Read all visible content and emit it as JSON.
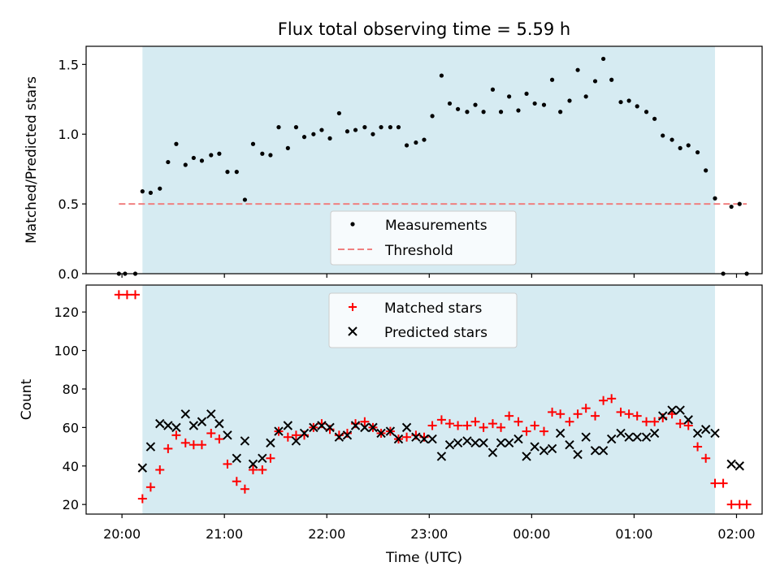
{
  "title": "Flux total observing time = 5.59 h",
  "xlabel": "Time (UTC)",
  "x_ticks": [
    "20:00",
    "21:00",
    "22:00",
    "23:00",
    "00:00",
    "01:00",
    "02:00"
  ],
  "colors": {
    "shade": "#add8e6",
    "measurement": "#000000",
    "threshold": "#f08080",
    "matched": "#ff0000",
    "predicted": "#000000"
  },
  "chart_data": [
    {
      "type": "scatter",
      "ylabel": "Matched/Predicted stars",
      "x_unit": "hours after 20:00 UTC",
      "xlim": [
        -0.35,
        6.25
      ],
      "ylim": [
        0,
        1.63
      ],
      "y_ticks": [
        "0.0",
        "0.5",
        "1.0",
        "1.5"
      ],
      "y_tick_values": [
        0,
        0.5,
        1.0,
        1.5
      ],
      "shaded_interval": [
        0.2,
        5.79
      ],
      "legend_location": "lower center",
      "legend": {
        "measurements": "Measurements",
        "threshold": "Threshold"
      },
      "threshold": {
        "name": "Threshold",
        "value": 0.5,
        "x_range": [
          -0.03,
          6.1
        ]
      },
      "series": [
        {
          "name": "Measurements",
          "x": [
            -0.03,
            0.03,
            0.13,
            0.2,
            0.28,
            0.37,
            0.45,
            0.53,
            0.62,
            0.7,
            0.78,
            0.87,
            0.95,
            1.03,
            1.12,
            1.2,
            1.28,
            1.37,
            1.45,
            1.53,
            1.62,
            1.7,
            1.78,
            1.87,
            1.95,
            2.03,
            2.12,
            2.2,
            2.28,
            2.37,
            2.45,
            2.53,
            2.62,
            2.7,
            2.78,
            2.87,
            2.95,
            3.03,
            3.12,
            3.2,
            3.28,
            3.37,
            3.45,
            3.53,
            3.62,
            3.7,
            3.78,
            3.87,
            3.95,
            4.03,
            4.12,
            4.2,
            4.28,
            4.37,
            4.45,
            4.53,
            4.62,
            4.7,
            4.78,
            4.87,
            4.95,
            5.03,
            5.12,
            5.2,
            5.28,
            5.37,
            5.45,
            5.53,
            5.62,
            5.7,
            5.79,
            5.87,
            5.95,
            6.03,
            6.1
          ],
          "y": [
            0.0,
            0.0,
            0.0,
            0.59,
            0.58,
            0.61,
            0.8,
            0.93,
            0.78,
            0.83,
            0.81,
            0.85,
            0.86,
            0.73,
            0.73,
            0.53,
            0.93,
            0.86,
            0.85,
            1.05,
            0.9,
            1.05,
            0.98,
            1.0,
            1.03,
            0.97,
            1.15,
            1.02,
            1.03,
            1.05,
            1.0,
            1.05,
            1.05,
            1.05,
            0.92,
            0.94,
            0.96,
            1.13,
            1.42,
            1.22,
            1.18,
            1.16,
            1.21,
            1.16,
            1.32,
            1.16,
            1.27,
            1.17,
            1.29,
            1.22,
            1.21,
            1.39,
            1.16,
            1.24,
            1.46,
            1.27,
            1.38,
            1.54,
            1.39,
            1.23,
            1.24,
            1.2,
            1.16,
            1.11,
            0.99,
            0.96,
            0.9,
            0.92,
            0.87,
            0.74,
            0.54,
            0.0,
            0.48,
            0.5,
            0.0
          ]
        }
      ]
    },
    {
      "type": "scatter",
      "ylabel": "Count",
      "x_unit": "hours after 20:00 UTC",
      "xlim": [
        -0.35,
        6.25
      ],
      "ylim": [
        15,
        134
      ],
      "y_ticks": [
        "20",
        "40",
        "60",
        "80",
        "100",
        "120"
      ],
      "y_tick_values": [
        20,
        40,
        60,
        80,
        100,
        120
      ],
      "shaded_interval": [
        0.2,
        5.79
      ],
      "legend_location": "upper center",
      "legend": {
        "matched": "Matched stars",
        "predicted": "Predicted stars"
      },
      "series": [
        {
          "name": "Matched stars",
          "marker": "+",
          "x": [
            -0.03,
            0.05,
            0.13,
            0.2,
            0.28,
            0.37,
            0.45,
            0.53,
            0.62,
            0.7,
            0.78,
            0.87,
            0.95,
            1.03,
            1.12,
            1.2,
            1.28,
            1.37,
            1.45,
            1.53,
            1.62,
            1.7,
            1.78,
            1.87,
            1.95,
            2.03,
            2.12,
            2.2,
            2.28,
            2.37,
            2.45,
            2.53,
            2.62,
            2.7,
            2.78,
            2.87,
            2.95,
            3.03,
            3.12,
            3.2,
            3.28,
            3.37,
            3.45,
            3.53,
            3.62,
            3.7,
            3.78,
            3.87,
            3.95,
            4.03,
            4.12,
            4.2,
            4.28,
            4.37,
            4.45,
            4.53,
            4.62,
            4.7,
            4.78,
            4.87,
            4.95,
            5.03,
            5.12,
            5.2,
            5.28,
            5.37,
            5.45,
            5.53,
            5.62,
            5.7,
            5.79,
            5.87,
            5.95,
            6.03,
            6.1
          ],
          "y": [
            129,
            129,
            129,
            23,
            29,
            38,
            49,
            56,
            52,
            51,
            51,
            57,
            54,
            41,
            32,
            28,
            38,
            38,
            44,
            58,
            55,
            56,
            56,
            60,
            62,
            59,
            56,
            57,
            62,
            63,
            60,
            57,
            58,
            54,
            55,
            56,
            55,
            61,
            64,
            62,
            61,
            61,
            63,
            60,
            62,
            60,
            66,
            63,
            58,
            61,
            58,
            68,
            67,
            63,
            67,
            70,
            66,
            74,
            75,
            68,
            67,
            66,
            63,
            63,
            65,
            67,
            62,
            61,
            50,
            44,
            31,
            31,
            20,
            20,
            20
          ]
        },
        {
          "name": "Predicted stars",
          "marker": "x",
          "x": [
            0.2,
            0.28,
            0.37,
            0.45,
            0.53,
            0.62,
            0.7,
            0.78,
            0.87,
            0.95,
            1.03,
            1.12,
            1.2,
            1.28,
            1.37,
            1.45,
            1.53,
            1.62,
            1.7,
            1.78,
            1.87,
            1.95,
            2.03,
            2.12,
            2.2,
            2.28,
            2.37,
            2.45,
            2.53,
            2.62,
            2.7,
            2.78,
            2.87,
            2.95,
            3.03,
            3.12,
            3.2,
            3.28,
            3.37,
            3.45,
            3.53,
            3.62,
            3.7,
            3.78,
            3.87,
            3.95,
            4.03,
            4.12,
            4.2,
            4.28,
            4.37,
            4.45,
            4.53,
            4.62,
            4.7,
            4.78,
            4.87,
            4.95,
            5.03,
            5.12,
            5.2,
            5.28,
            5.37,
            5.45,
            5.53,
            5.62,
            5.7,
            5.79,
            5.95,
            6.03
          ],
          "y": [
            39,
            50,
            62,
            61,
            60,
            67,
            61,
            63,
            67,
            62,
            56,
            44,
            53,
            41,
            44,
            52,
            58,
            61,
            53,
            57,
            60,
            61,
            60,
            55,
            56,
            61,
            60,
            60,
            57,
            58,
            54,
            60,
            55,
            54,
            54,
            45,
            51,
            52,
            53,
            52,
            52,
            47,
            52,
            52,
            54,
            45,
            50,
            48,
            49,
            57,
            51,
            46,
            55,
            48,
            48,
            54,
            57,
            55,
            55,
            55,
            57,
            66,
            69,
            69,
            64,
            57,
            59,
            57,
            41,
            40
          ]
        }
      ]
    }
  ]
}
